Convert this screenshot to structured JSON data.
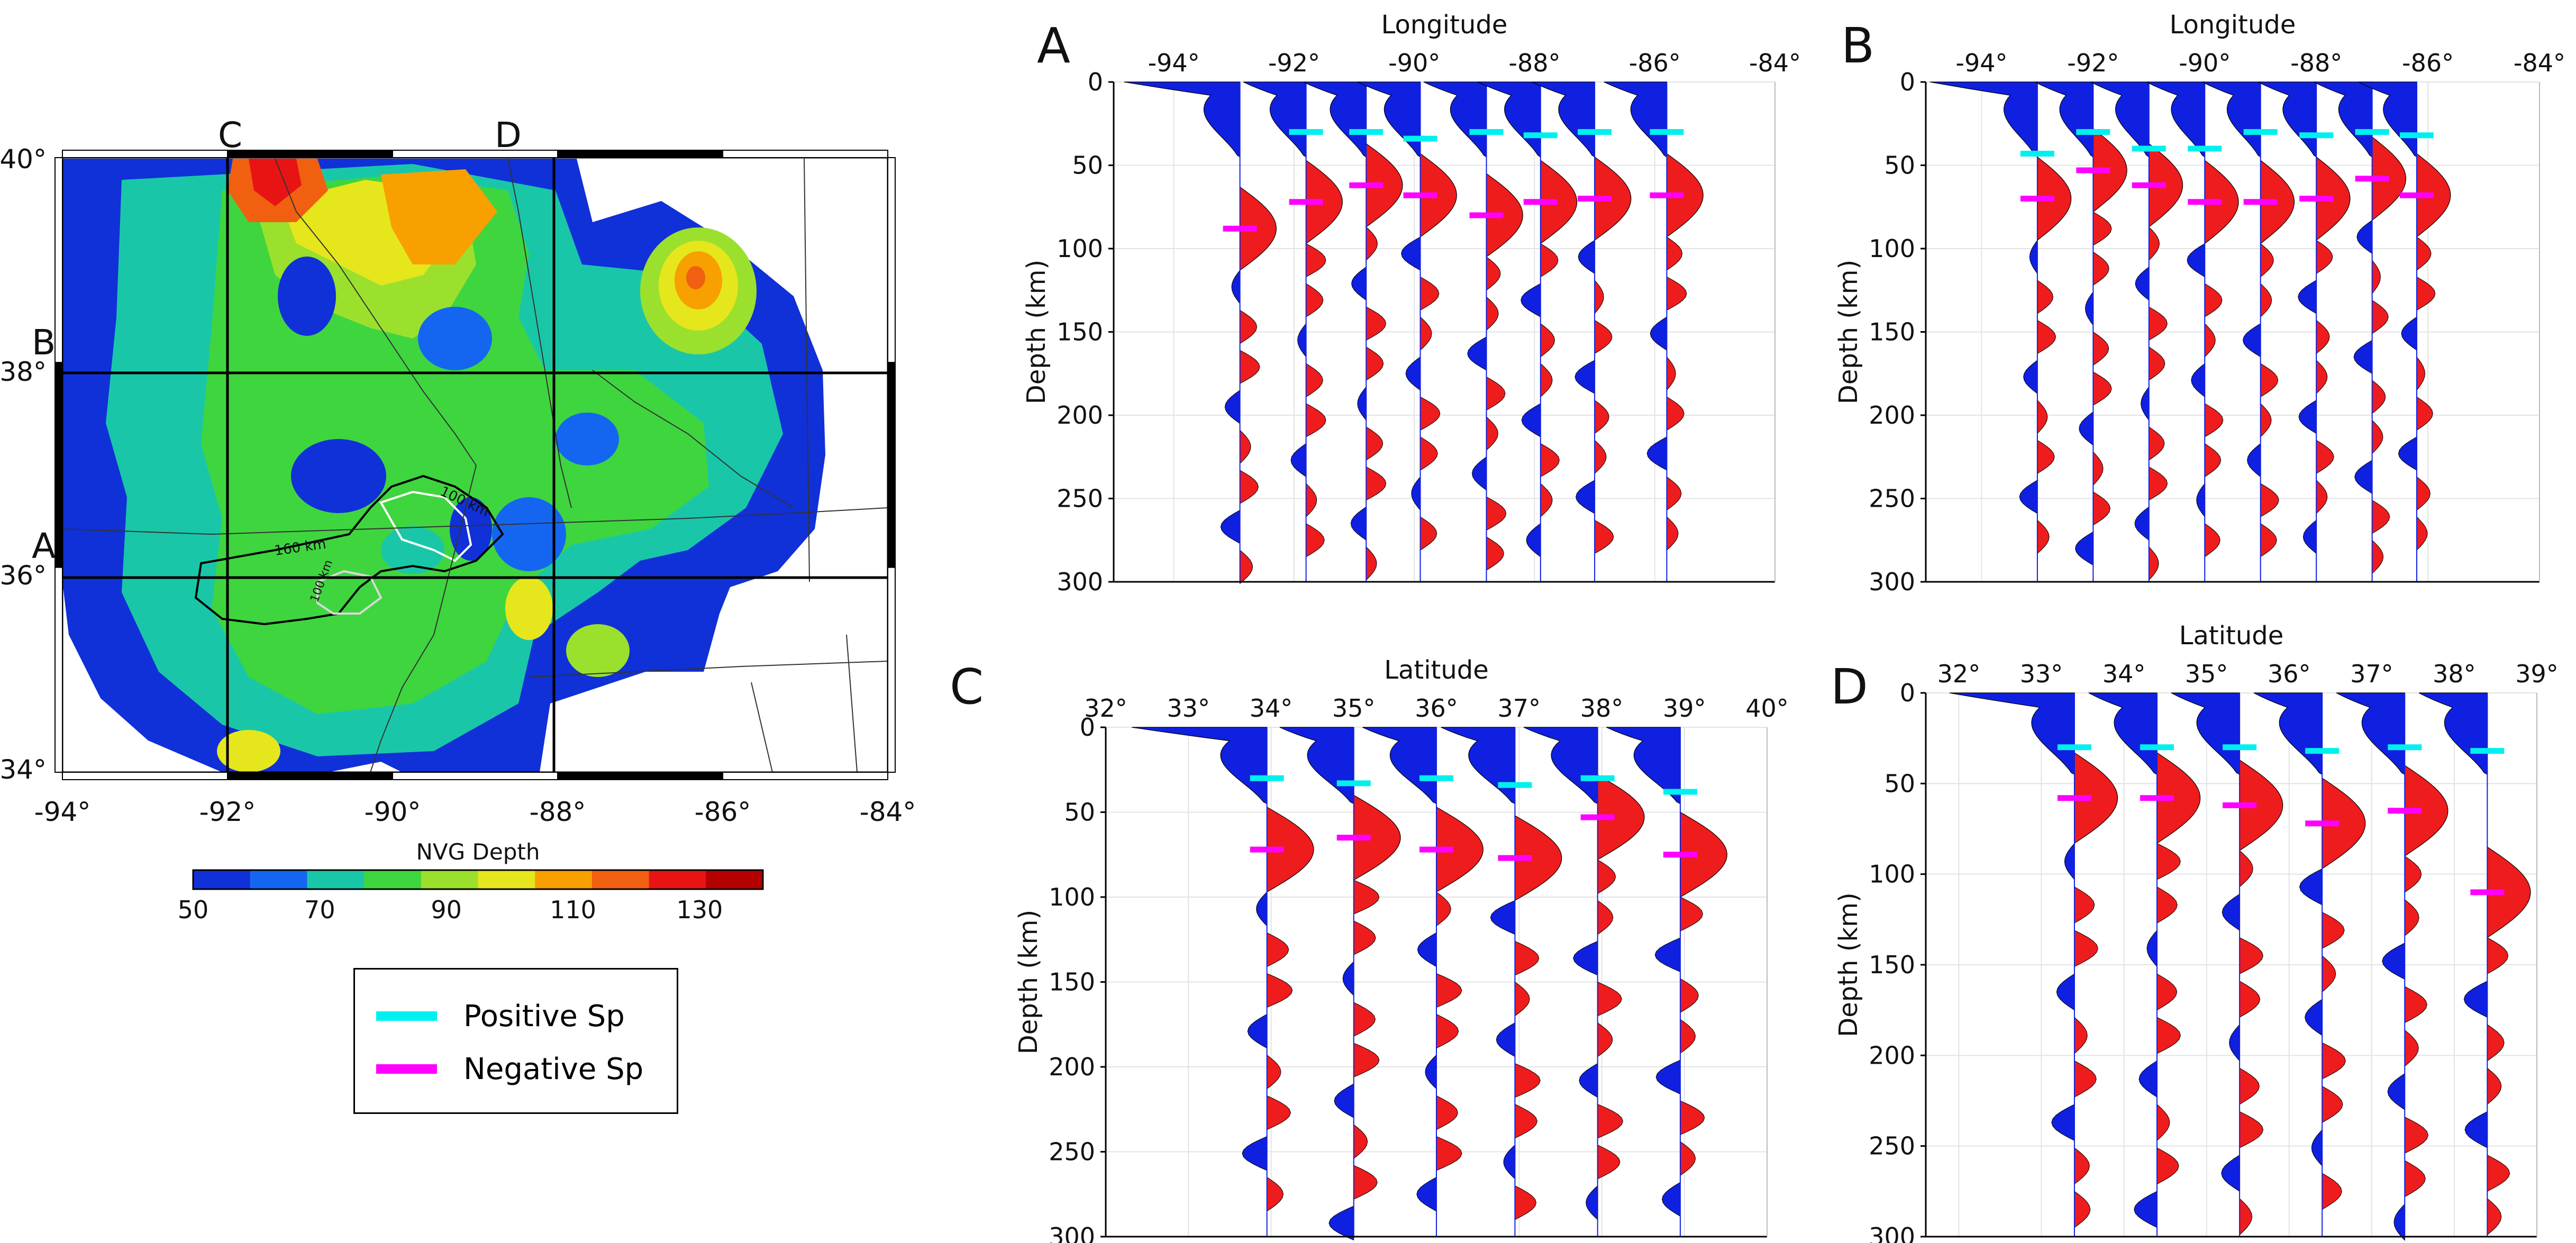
{
  "colors": {
    "positive_fill": "#1020e0",
    "negative_fill": "#ee1c1c",
    "positive_sp": "#00f0f0",
    "negative_sp": "#ff00ff",
    "colorbar": [
      "#1030d8",
      "#1466f0",
      "#19c7a8",
      "#3fd53f",
      "#9be02d",
      "#e6e61c",
      "#f7a000",
      "#f06010",
      "#e81414",
      "#b40000"
    ]
  },
  "legend": {
    "items": [
      {
        "label": "Positive Sp",
        "color": "#00f0f0"
      },
      {
        "label": "Negative Sp",
        "color": "#ff00ff"
      }
    ]
  },
  "map": {
    "lon_ticks": [
      "-94°",
      "-92°",
      "-90°",
      "-88°",
      "-86°",
      "-84°"
    ],
    "lat_ticks": [
      "40°",
      "38°",
      "36°",
      "34°"
    ],
    "profile_labels": [
      "A",
      "B",
      "C",
      "D"
    ],
    "contour_labels": [
      "160 km",
      "100 km",
      "100 km"
    ],
    "colorbar": {
      "title": "NVG Depth",
      "ticks": [
        "50",
        "70",
        "90",
        "110",
        "130"
      ],
      "range": [
        50,
        140
      ]
    }
  },
  "chart_data": [
    {
      "panel": "A",
      "type": "area",
      "xlabel": "Longitude",
      "ylabel": "Depth (km)",
      "x_ticks": [
        "-94°",
        "-92°",
        "-90°",
        "-88°",
        "-86°",
        "-84°"
      ],
      "x_range": [
        -95,
        -84
      ],
      "y_ticks": [
        "0",
        "50",
        "100",
        "150",
        "200",
        "250",
        "300"
      ],
      "ylim": [
        0,
        300
      ],
      "stations": [
        -92.9,
        -91.8,
        -90.8,
        -89.9,
        -88.8,
        -87.9,
        -87.0,
        -85.8
      ],
      "positive_sp": [
        {
          "x": -91.8,
          "depth": 30
        },
        {
          "x": -90.8,
          "depth": 30
        },
        {
          "x": -89.9,
          "depth": 34
        },
        {
          "x": -88.8,
          "depth": 30
        },
        {
          "x": -87.9,
          "depth": 32
        },
        {
          "x": -87.0,
          "depth": 30
        },
        {
          "x": -85.8,
          "depth": 30
        }
      ],
      "negative_sp": [
        {
          "x": -92.9,
          "depth": 88
        },
        {
          "x": -91.8,
          "depth": 72
        },
        {
          "x": -90.8,
          "depth": 62
        },
        {
          "x": -89.9,
          "depth": 68
        },
        {
          "x": -88.8,
          "depth": 80
        },
        {
          "x": -87.9,
          "depth": 72
        },
        {
          "x": -87.0,
          "depth": 70
        },
        {
          "x": -85.8,
          "depth": 68
        }
      ]
    },
    {
      "panel": "B",
      "type": "area",
      "xlabel": "Longitude",
      "ylabel": "Depth (km)",
      "x_ticks": [
        "-94°",
        "-92°",
        "-90°",
        "-88°",
        "-86°",
        "-84°"
      ],
      "x_range": [
        -95,
        -84
      ],
      "y_ticks": [
        "0",
        "50",
        "100",
        "150",
        "200",
        "250",
        "300"
      ],
      "ylim": [
        0,
        300
      ],
      "stations": [
        -93.0,
        -92.0,
        -91.0,
        -90.0,
        -89.0,
        -88.0,
        -87.0,
        -86.2
      ],
      "positive_sp": [
        {
          "x": -93.0,
          "depth": 43
        },
        {
          "x": -92.0,
          "depth": 30
        },
        {
          "x": -91.0,
          "depth": 40
        },
        {
          "x": -90.0,
          "depth": 40
        },
        {
          "x": -89.0,
          "depth": 30
        },
        {
          "x": -88.0,
          "depth": 32
        },
        {
          "x": -87.0,
          "depth": 30
        },
        {
          "x": -86.2,
          "depth": 32
        }
      ],
      "negative_sp": [
        {
          "x": -93.0,
          "depth": 70
        },
        {
          "x": -92.0,
          "depth": 53
        },
        {
          "x": -91.0,
          "depth": 62
        },
        {
          "x": -90.0,
          "depth": 72
        },
        {
          "x": -89.0,
          "depth": 72
        },
        {
          "x": -88.0,
          "depth": 70
        },
        {
          "x": -87.0,
          "depth": 58
        },
        {
          "x": -86.2,
          "depth": 68
        }
      ]
    },
    {
      "panel": "C",
      "type": "area",
      "xlabel": "Latitude",
      "ylabel": "Depth (km)",
      "x_ticks": [
        "32°",
        "33°",
        "34°",
        "35°",
        "36°",
        "37°",
        "38°",
        "39°",
        "40°"
      ],
      "x_range": [
        32,
        40
      ],
      "y_ticks": [
        "0",
        "50",
        "100",
        "150",
        "200",
        "250",
        "300"
      ],
      "ylim": [
        0,
        300
      ],
      "stations": [
        33.95,
        35.0,
        36.0,
        36.95,
        37.95,
        38.95
      ],
      "positive_sp": [
        {
          "x": 33.95,
          "depth": 30
        },
        {
          "x": 35.0,
          "depth": 33
        },
        {
          "x": 36.0,
          "depth": 30
        },
        {
          "x": 36.95,
          "depth": 34
        },
        {
          "x": 37.95,
          "depth": 30
        },
        {
          "x": 38.95,
          "depth": 38
        }
      ],
      "negative_sp": [
        {
          "x": 33.95,
          "depth": 72
        },
        {
          "x": 35.0,
          "depth": 65
        },
        {
          "x": 36.0,
          "depth": 72
        },
        {
          "x": 36.95,
          "depth": 77
        },
        {
          "x": 37.95,
          "depth": 53
        },
        {
          "x": 38.95,
          "depth": 75
        }
      ]
    },
    {
      "panel": "D",
      "type": "area",
      "xlabel": "Latitude",
      "ylabel": "Depth (km)",
      "x_ticks": [
        "32°",
        "33°",
        "34°",
        "35°",
        "36°",
        "37°",
        "38°",
        "39°"
      ],
      "x_range": [
        31.6,
        39
      ],
      "y_ticks": [
        "0",
        "50",
        "100",
        "150",
        "200",
        "250",
        "300"
      ],
      "ylim": [
        0,
        300
      ],
      "stations": [
        33.4,
        34.4,
        35.4,
        36.4,
        37.4,
        38.4
      ],
      "positive_sp": [
        {
          "x": 33.4,
          "depth": 30
        },
        {
          "x": 34.4,
          "depth": 30
        },
        {
          "x": 35.4,
          "depth": 30
        },
        {
          "x": 36.4,
          "depth": 32
        },
        {
          "x": 37.4,
          "depth": 30
        },
        {
          "x": 38.4,
          "depth": 32
        }
      ],
      "negative_sp": [
        {
          "x": 33.4,
          "depth": 58
        },
        {
          "x": 34.4,
          "depth": 58
        },
        {
          "x": 35.4,
          "depth": 62
        },
        {
          "x": 36.4,
          "depth": 72
        },
        {
          "x": 37.4,
          "depth": 65
        },
        {
          "x": 38.4,
          "depth": 110
        }
      ]
    }
  ]
}
